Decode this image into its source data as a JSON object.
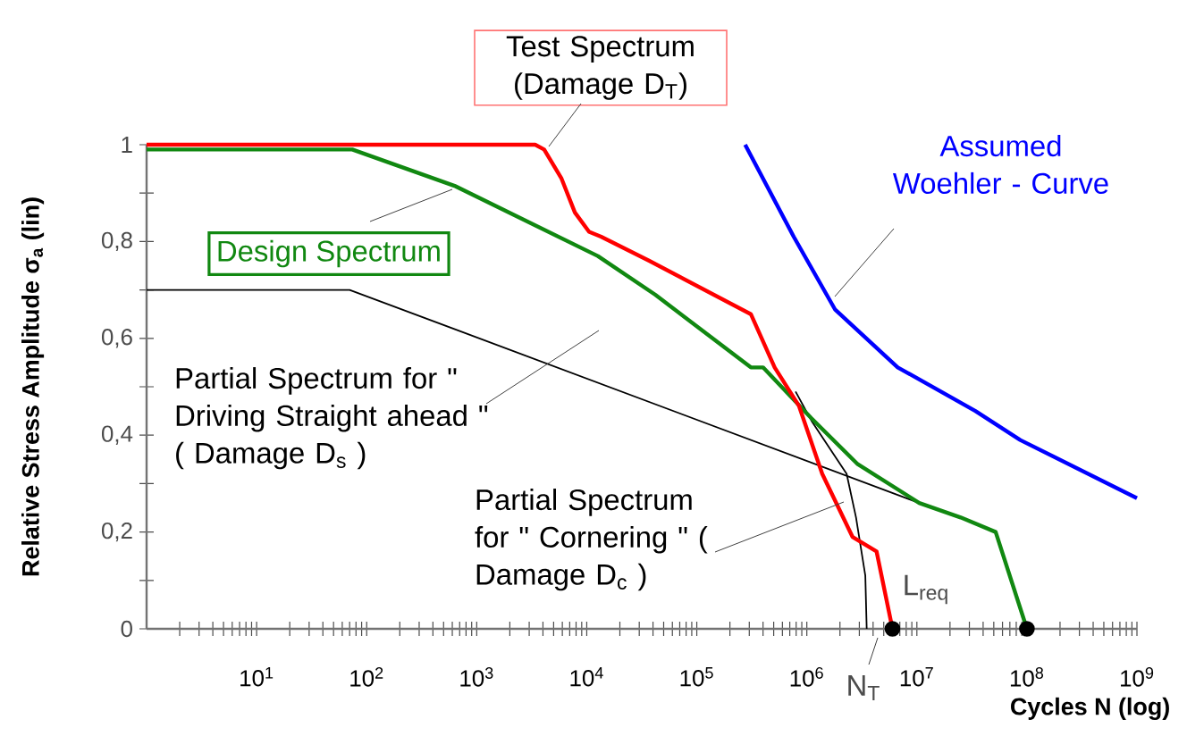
{
  "chart_data": {
    "type": "line",
    "xlabel": "Cycles  N  (log)",
    "ylabel": "Relative Stress Amplitude  σ$_{a}$  (lin)",
    "log": "x",
    "xlim": [
      1,
      1000000000
    ],
    "ylim": [
      0,
      1
    ],
    "xticks": [
      {
        "value": 2,
        "label": null
      },
      {
        "value": 3,
        "label": null
      },
      {
        "value": 4,
        "label": null
      },
      {
        "value": 5,
        "label": null
      },
      {
        "value": 6,
        "label": null
      },
      {
        "value": 7,
        "label": null
      },
      {
        "value": 8,
        "label": null
      },
      {
        "value": 9,
        "label": null
      },
      {
        "value": 10,
        "label": "10$^{1}$"
      },
      {
        "value": 20,
        "label": null
      },
      {
        "value": 30,
        "label": null
      },
      {
        "value": 40,
        "label": null
      },
      {
        "value": 50,
        "label": null
      },
      {
        "value": 60,
        "label": null
      },
      {
        "value": 70,
        "label": null
      },
      {
        "value": 80,
        "label": null
      },
      {
        "value": 90,
        "label": null
      },
      {
        "value": 100,
        "label": "10$^{2}$"
      },
      {
        "value": 200,
        "label": null
      },
      {
        "value": 300,
        "label": null
      },
      {
        "value": 400,
        "label": null
      },
      {
        "value": 500,
        "label": null
      },
      {
        "value": 600,
        "label": null
      },
      {
        "value": 700,
        "label": null
      },
      {
        "value": 800,
        "label": null
      },
      {
        "value": 900,
        "label": null
      },
      {
        "value": 1000,
        "label": "10$^{3}$"
      },
      {
        "value": 2000,
        "label": null
      },
      {
        "value": 3000,
        "label": null
      },
      {
        "value": 4000,
        "label": null
      },
      {
        "value": 5000,
        "label": null
      },
      {
        "value": 6000,
        "label": null
      },
      {
        "value": 7000,
        "label": null
      },
      {
        "value": 8000,
        "label": null
      },
      {
        "value": 9000,
        "label": null
      },
      {
        "value": 10000,
        "label": "10$^{4}$"
      },
      {
        "value": 20000,
        "label": null
      },
      {
        "value": 30000,
        "label": null
      },
      {
        "value": 40000,
        "label": null
      },
      {
        "value": 50000,
        "label": null
      },
      {
        "value": 60000,
        "label": null
      },
      {
        "value": 70000,
        "label": null
      },
      {
        "value": 80000,
        "label": null
      },
      {
        "value": 90000,
        "label": null
      },
      {
        "value": 100000,
        "label": "10$^{5}$"
      },
      {
        "value": 200000,
        "label": null
      },
      {
        "value": 300000,
        "label": null
      },
      {
        "value": 400000,
        "label": null
      },
      {
        "value": 500000,
        "label": null
      },
      {
        "value": 600000,
        "label": null
      },
      {
        "value": 700000,
        "label": null
      },
      {
        "value": 800000,
        "label": null
      },
      {
        "value": 900000,
        "label": null
      },
      {
        "value": 1000000,
        "label": "10$^{6}$"
      },
      {
        "value": 2000000,
        "label": null
      },
      {
        "value": 3000000,
        "label": null
      },
      {
        "value": 4000000,
        "label": null
      },
      {
        "value": 5000000,
        "label": null
      },
      {
        "value": 6000000,
        "label": null
      },
      {
        "value": 7000000,
        "label": null
      },
      {
        "value": 8000000,
        "label": null
      },
      {
        "value": 9000000,
        "label": null
      },
      {
        "value": 10000000,
        "label": "10$^{7}$"
      },
      {
        "value": 20000000,
        "label": null
      },
      {
        "value": 30000000,
        "label": null
      },
      {
        "value": 40000000,
        "label": null
      },
      {
        "value": 50000000,
        "label": null
      },
      {
        "value": 60000000,
        "label": null
      },
      {
        "value": 70000000,
        "label": null
      },
      {
        "value": 80000000,
        "label": null
      },
      {
        "value": 90000000,
        "label": null
      },
      {
        "value": 100000000,
        "label": "10$^{8}$"
      },
      {
        "value": 200000000,
        "label": null
      },
      {
        "value": 300000000,
        "label": null
      },
      {
        "value": 400000000,
        "label": null
      },
      {
        "value": 500000000,
        "label": null
      },
      {
        "value": 600000000,
        "label": null
      },
      {
        "value": 700000000,
        "label": null
      },
      {
        "value": 800000000,
        "label": null
      },
      {
        "value": 900000000,
        "label": null
      },
      {
        "value": 1000000000,
        "label": "10$^{9}$"
      }
    ],
    "yticks": [
      0,
      {
        "value": 0.1,
        "label": null
      },
      {
        "value": 0.2,
        "label": "0,2"
      },
      {
        "value": 0.3,
        "label": null
      },
      {
        "value": 0.4,
        "label": "0,4"
      },
      {
        "value": 0.5,
        "label": null
      },
      {
        "value": 0.6,
        "label": "0,6"
      },
      {
        "value": 0.7,
        "label": null
      },
      {
        "value": 0.8,
        "label": "0,8"
      },
      {
        "value": 0.9,
        "label": null
      },
      1
    ],
    "series": [
      {
        "name": "Partial Spectrum for \" Driving Straight ahead \" ( Damage D$_{s}$ )",
        "color": "#000000",
        "x": [
          1,
          70,
          10500000
        ],
        "values": [
          0.7,
          0.7,
          0.26
        ]
      },
      {
        "name": "Partial Spectrum for \" Cornering \" ( Damage D$_{c}$ )",
        "color": "#000000",
        "x": [
          790000,
          1100000,
          2300000,
          2800000,
          3400000,
          3500000
        ],
        "values": [
          0.49,
          0.43,
          0.32,
          0.23,
          0.11,
          0
        ]
      },
      {
        "name": "Design Spectrum",
        "color": "#118811",
        "x": [
          1,
          74,
          630,
          12600,
          42000,
          310000,
          400000,
          1100000,
          2900000,
          10500000,
          25000000,
          52000000,
          100000000
        ],
        "values": [
          0.99,
          0.99,
          0.915,
          0.77,
          0.69,
          0.54,
          0.54,
          0.435,
          0.34,
          0.26,
          0.23,
          0.2,
          0
        ]
      },
      {
        "name": "Test Spectrum (Damage  D$_{T}$)",
        "color": "#ff0000",
        "x": [
          1,
          3400,
          4100,
          5900,
          7800,
          10500,
          13500,
          37000,
          310000,
          510000,
          850000,
          1380000,
          2600000,
          4300000,
          6000000
        ],
        "values": [
          1,
          1,
          0.99,
          0.93,
          0.86,
          0.82,
          0.81,
          0.76,
          0.65,
          0.54,
          0.46,
          0.32,
          0.19,
          0.16,
          0
        ]
      },
      {
        "name": "Assumed Woehler - Curve",
        "color": "#0000ff",
        "x": [
          275000,
          760000,
          1800000,
          6700000,
          34000000,
          87000000,
          1000000000
        ],
        "values": [
          1,
          0.81,
          0.66,
          0.54,
          0.45,
          0.39,
          0.27
        ]
      },
      {
        "type": "scatter",
        "marker": "circle",
        "color": "#000000",
        "x": [
          6000000,
          100000000
        ],
        "values": [
          0,
          0
        ]
      }
    ],
    "annotations": [
      "L$_{req}$",
      "N$_{T}$"
    ]
  }
}
